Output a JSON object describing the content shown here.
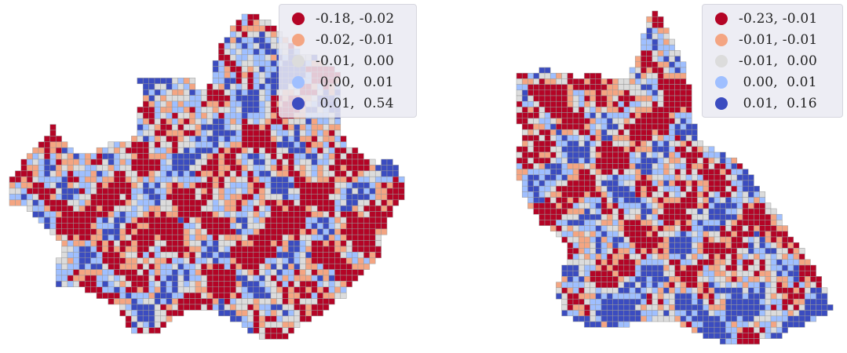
{
  "colors": {
    "c1": "#b40426",
    "c2": "#f4a582",
    "c3": "#dcdcdc",
    "c4": "#9fbfff",
    "c5": "#3b4cc0",
    "cell_border": "#9a9a9a"
  },
  "left_map": {
    "legend": [
      {
        "label": "-0.18, -0.02",
        "color": "#b40426"
      },
      {
        "label": "-0.02, -0.01",
        "color": "#f4a582"
      },
      {
        "label": "-0.01,  0.00",
        "color": "#dcdcdc"
      },
      {
        "label": " 0.00,  0.01",
        "color": "#9fbfff"
      },
      {
        "label": " 0.01,  0.54",
        "color": "#3b4cc0"
      }
    ]
  },
  "right_map": {
    "legend": [
      {
        "label": "-0.23, -0.01",
        "color": "#b40426"
      },
      {
        "label": "-0.01, -0.01",
        "color": "#f4a582"
      },
      {
        "label": "-0.01,  0.00",
        "color": "#dcdcdc"
      },
      {
        "label": " 0.00,  0.01",
        "color": "#9fbfff"
      },
      {
        "label": " 0.01,  0.16",
        "color": "#3b4cc0"
      }
    ]
  }
}
